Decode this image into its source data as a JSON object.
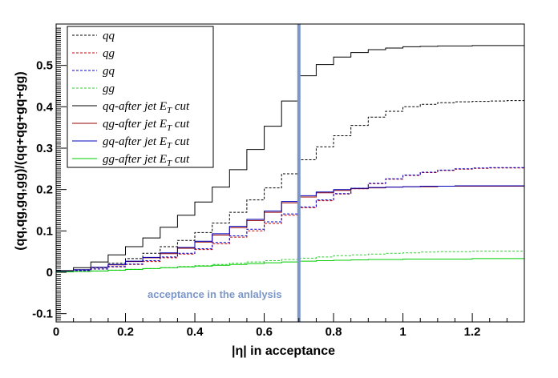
{
  "chart_data": {
    "type": "line",
    "title": "",
    "xlabel": "|η| in acceptance",
    "ylabel": "(qq,qg,gq,gg)/(qq+qg+gq+gg)",
    "xlim": [
      0,
      1.35
    ],
    "ylim": [
      -0.12,
      0.6
    ],
    "x_ticks": [
      0,
      0.2,
      0.4,
      0.6,
      0.8,
      1,
      1.2
    ],
    "x_tick_labels": [
      "0",
      "0.2",
      "0.4",
      "0.6",
      "0.8",
      "1",
      "1.2"
    ],
    "y_ticks": [
      -0.1,
      0,
      0.1,
      0.2,
      0.3,
      0.4,
      0.5
    ],
    "y_tick_labels": [
      "-0.1",
      "0",
      "0.1",
      "0.2",
      "0.3",
      "0.4",
      "0.5"
    ],
    "grid": false,
    "legend_position": "top-left",
    "annotation": {
      "text": "acceptance in the anlalysis",
      "x": 0.7,
      "color": "#7b96c8"
    },
    "x": [
      0.025,
      0.075,
      0.125,
      0.175,
      0.225,
      0.275,
      0.325,
      0.375,
      0.425,
      0.475,
      0.525,
      0.575,
      0.625,
      0.675,
      0.725,
      0.775,
      0.825,
      0.875,
      0.925,
      0.975,
      1.025,
      1.075,
      1.125,
      1.175,
      1.225,
      1.275,
      1.325
    ],
    "series": [
      {
        "name": "qq",
        "color": "#000000",
        "dashed": true,
        "values": [
          0.002,
          0.006,
          0.011,
          0.022,
          0.033,
          0.046,
          0.062,
          0.077,
          0.096,
          0.119,
          0.145,
          0.175,
          0.204,
          0.238,
          0.272,
          0.303,
          0.33,
          0.355,
          0.375,
          0.389,
          0.4,
          0.406,
          0.41,
          0.412,
          0.413,
          0.414,
          0.415
        ]
      },
      {
        "name": "qg",
        "color": "#cc0000",
        "dashed": true,
        "values": [
          0.002,
          0.004,
          0.008,
          0.013,
          0.019,
          0.026,
          0.035,
          0.044,
          0.055,
          0.069,
          0.085,
          0.1,
          0.118,
          0.138,
          0.156,
          0.173,
          0.189,
          0.202,
          0.214,
          0.225,
          0.234,
          0.241,
          0.246,
          0.249,
          0.251,
          0.252,
          0.252
        ]
      },
      {
        "name": "gq",
        "color": "#0000cc",
        "dashed": true,
        "values": [
          0.002,
          0.004,
          0.008,
          0.014,
          0.02,
          0.028,
          0.037,
          0.046,
          0.057,
          0.072,
          0.088,
          0.104,
          0.122,
          0.141,
          0.158,
          0.175,
          0.19,
          0.203,
          0.215,
          0.226,
          0.235,
          0.242,
          0.247,
          0.25,
          0.252,
          0.253,
          0.253
        ]
      },
      {
        "name": "gg",
        "color": "#33cc33",
        "dashed": true,
        "values": [
          0.001,
          0.002,
          0.003,
          0.005,
          0.007,
          0.009,
          0.011,
          0.014,
          0.016,
          0.019,
          0.022,
          0.025,
          0.028,
          0.031,
          0.034,
          0.037,
          0.04,
          0.042,
          0.044,
          0.046,
          0.047,
          0.049,
          0.05,
          0.05,
          0.051,
          0.051,
          0.051
        ]
      },
      {
        "name": "qq-after jet E_T cut",
        "color": "#000000",
        "dashed": false,
        "values": [
          0.004,
          0.011,
          0.025,
          0.042,
          0.062,
          0.083,
          0.109,
          0.138,
          0.17,
          0.206,
          0.248,
          0.297,
          0.353,
          0.414,
          0.475,
          0.502,
          0.52,
          0.531,
          0.538,
          0.542,
          0.545,
          0.546,
          0.547,
          0.547,
          0.548,
          0.548,
          0.548
        ]
      },
      {
        "name": "qg-after jet E_T cut",
        "color": "#990000",
        "dashed": false,
        "values": [
          0.002,
          0.006,
          0.012,
          0.018,
          0.026,
          0.035,
          0.045,
          0.058,
          0.073,
          0.09,
          0.108,
          0.125,
          0.145,
          0.168,
          0.182,
          0.192,
          0.198,
          0.202,
          0.204,
          0.206,
          0.207,
          0.207,
          0.208,
          0.208,
          0.208,
          0.208,
          0.208
        ]
      },
      {
        "name": "gq-after jet E_T cut",
        "color": "#0000bb",
        "dashed": false,
        "values": [
          0.002,
          0.006,
          0.012,
          0.019,
          0.027,
          0.036,
          0.047,
          0.06,
          0.075,
          0.093,
          0.111,
          0.128,
          0.148,
          0.171,
          0.185,
          0.194,
          0.2,
          0.203,
          0.205,
          0.206,
          0.207,
          0.208,
          0.208,
          0.209,
          0.209,
          0.209,
          0.209
        ]
      },
      {
        "name": "gg-after jet E_T cut",
        "color": "#00cc00",
        "dashed": false,
        "values": [
          0.001,
          0.002,
          0.003,
          0.005,
          0.007,
          0.009,
          0.011,
          0.013,
          0.015,
          0.017,
          0.019,
          0.021,
          0.023,
          0.025,
          0.027,
          0.028,
          0.029,
          0.03,
          0.031,
          0.031,
          0.032,
          0.032,
          0.032,
          0.032,
          0.033,
          0.033,
          0.033
        ]
      }
    ]
  }
}
